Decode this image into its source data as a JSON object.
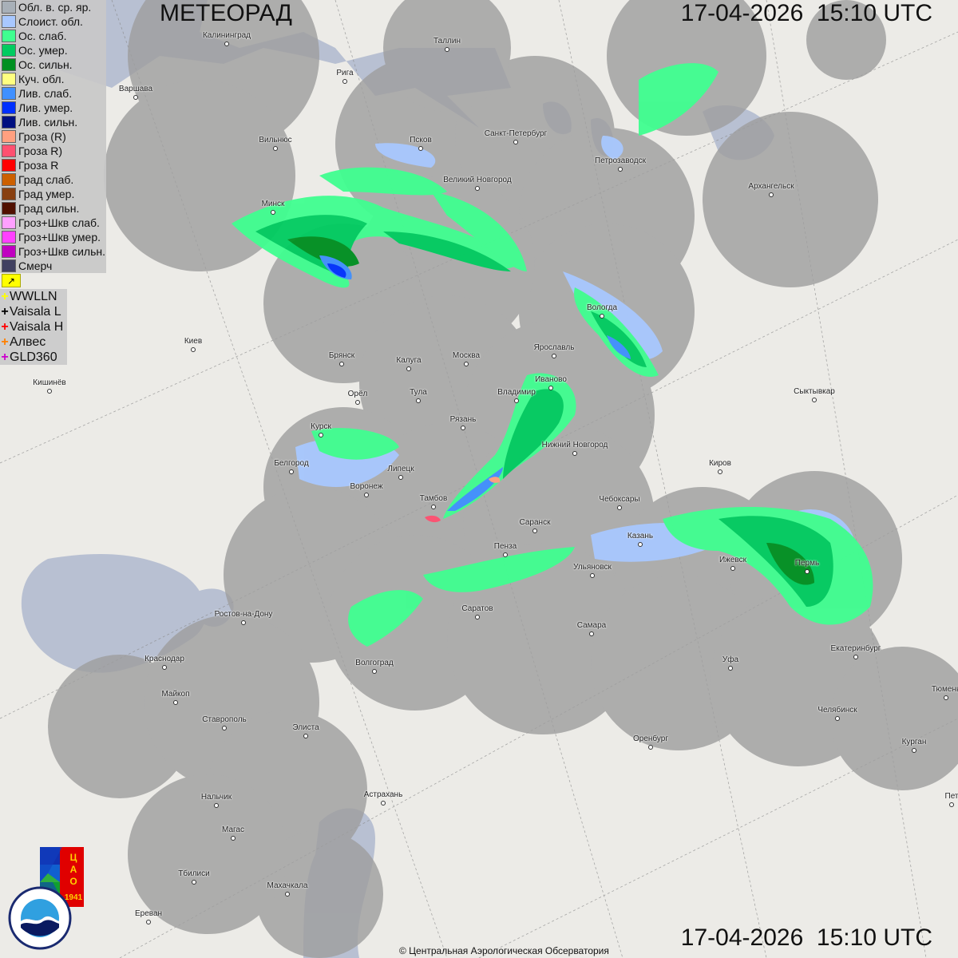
{
  "header": {
    "title": "МЕТЕОРАД",
    "timestamp_top": "17-04-2026  15:10 UTC",
    "timestamp_bottom": "17-04-2026  15:10 UTC"
  },
  "legend": {
    "items": [
      {
        "label": "Обл. в. ср. яр.",
        "color": "#a8b0b8"
      },
      {
        "label": "Слоист. обл.",
        "color": "#a8c8ff"
      },
      {
        "label": "Ос. слаб.",
        "color": "#40ff90"
      },
      {
        "label": "Ос. умер.",
        "color": "#00cc60"
      },
      {
        "label": "Ос. сильн.",
        "color": "#009020"
      },
      {
        "label": "Куч. обл.",
        "color": "#ffff80"
      },
      {
        "label": "Лив. слаб.",
        "color": "#4090ff"
      },
      {
        "label": "Лив. умер.",
        "color": "#0030ff"
      },
      {
        "label": "Лив. сильн.",
        "color": "#001080"
      },
      {
        "label": "Гроза (R)",
        "color": "#ffa080"
      },
      {
        "label": "Гроза R)",
        "color": "#ff5070"
      },
      {
        "label": "Гроза R",
        "color": "#ff0000"
      },
      {
        "label": "Град слаб.",
        "color": "#cc6000"
      },
      {
        "label": "Град умер.",
        "color": "#884010"
      },
      {
        "label": "Град сильн.",
        "color": "#501000"
      },
      {
        "label": "Гроз+Шкв слаб.",
        "color": "#ffa0ff"
      },
      {
        "label": "Гроз+Шкв умер.",
        "color": "#ff40ff"
      },
      {
        "label": "Гроз+Шкв сильн.",
        "color": "#c000c0"
      },
      {
        "label": "Смерч",
        "color": "#404060"
      }
    ],
    "flag_icon": "flag-icon"
  },
  "lightning": {
    "items": [
      {
        "label": "WWLLN",
        "color": "#ffff00"
      },
      {
        "label": "Vaisala L",
        "color": "#000000"
      },
      {
        "label": "Vaisala H",
        "color": "#ff0000"
      },
      {
        "label": "Алвес",
        "color": "#ff8000"
      },
      {
        "label": "GLD360",
        "color": "#cc00cc"
      }
    ]
  },
  "cities": [
    "Калининград",
    "Таллин",
    "Рига",
    "Варшава",
    "Санкт-Петербург",
    "Псков",
    "Вильнюс",
    "Петрозаводск",
    "Великий Новгород",
    "Архангельск",
    "Минск",
    "Вологда",
    "Киев",
    "Ярославль",
    "Москва",
    "Брянск",
    "Калуга",
    "Иваново",
    "Кишинёв",
    "Орёл",
    "Тула",
    "Владимир",
    "Сыктывкар",
    "Рязань",
    "Курск",
    "Нижний Новгород",
    "Белгород",
    "Киров",
    "Липецк",
    "Воронеж",
    "Тамбов",
    "Чебоксары",
    "Саранск",
    "Казань",
    "Пенза",
    "Ижевск",
    "Пермь",
    "Ульяновск",
    "Саратов",
    "Ростов-на-Дону",
    "Самара",
    "Екатеринбург",
    "Краснодар",
    "Волгоград",
    "Уфа",
    "Тюмень",
    "Майкоп",
    "Челябинск",
    "Ставрополь",
    "Элиста",
    "Оренбург",
    "Курган",
    "Астрахань",
    "Нальчик",
    "Пет",
    "Магас",
    "Тбилиси",
    "Махачкала",
    "Ереван"
  ],
  "footer": {
    "copyright": "© Центральная Аэрологическая Обсерватория"
  },
  "logos": {
    "cao": "ЦАО 1941",
    "roshydromet": "РОСГИДРОМЕТ ROSHYDROMET"
  },
  "colors": {
    "radar_coverage": "#9e9e9e",
    "map_background": "#ecebe7",
    "water": "#b4bccc"
  }
}
